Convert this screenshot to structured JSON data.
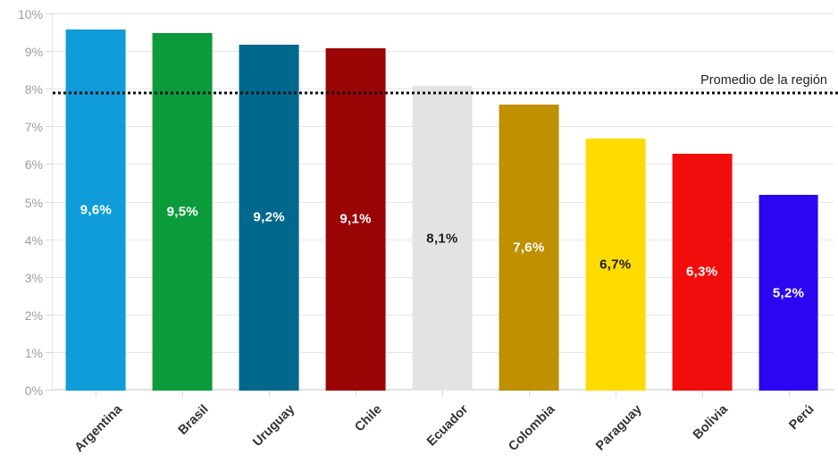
{
  "chart_data": {
    "type": "bar",
    "title": "",
    "xlabel": "",
    "ylabel": "",
    "categories": [
      "Argentina",
      "Brasil",
      "Uruguay",
      "Chile",
      "Ecuador",
      "Colombia",
      "Paraguay",
      "Bolivia",
      "Perú"
    ],
    "values": [
      9.6,
      9.5,
      9.2,
      9.1,
      8.1,
      7.6,
      6.7,
      6.3,
      5.2
    ],
    "value_labels": [
      "9,6%",
      "9,5%",
      "9,2%",
      "9,1%",
      "8,1%",
      "7,6%",
      "6,7%",
      "6,3%",
      "5,2%"
    ],
    "bar_colors": [
      "#0f9cd8",
      "#0c9b3b",
      "#00688c",
      "#9a0505",
      "#e3e3e3",
      "#bf9000",
      "#ffdb00",
      "#f20d0d",
      "#2b06f0"
    ],
    "value_label_colors": [
      "#ffffff",
      "#ffffff",
      "#ffffff",
      "#ffffff",
      "#1c1c1c",
      "#ffffff",
      "#1c1c1c",
      "#ffffff",
      "#ffffff"
    ],
    "ylim": [
      0,
      10
    ],
    "yticks": [
      "0%",
      "1%",
      "2%",
      "3%",
      "4%",
      "5%",
      "6%",
      "7%",
      "8%",
      "9%",
      "10%"
    ],
    "grid": true,
    "legend": "none",
    "plot_line": {
      "value": 7.9,
      "label": "Promedio de la región"
    }
  },
  "palette": {
    "background": "#ffffff",
    "grid": "#e6e6e6",
    "base_axis": "#e2e2e2",
    "tick": "#d9d9d9",
    "ytick_label": "#9d9d9d",
    "xcat_label": "#333333",
    "plotline": "#111111",
    "plotline_label": "#222222"
  }
}
